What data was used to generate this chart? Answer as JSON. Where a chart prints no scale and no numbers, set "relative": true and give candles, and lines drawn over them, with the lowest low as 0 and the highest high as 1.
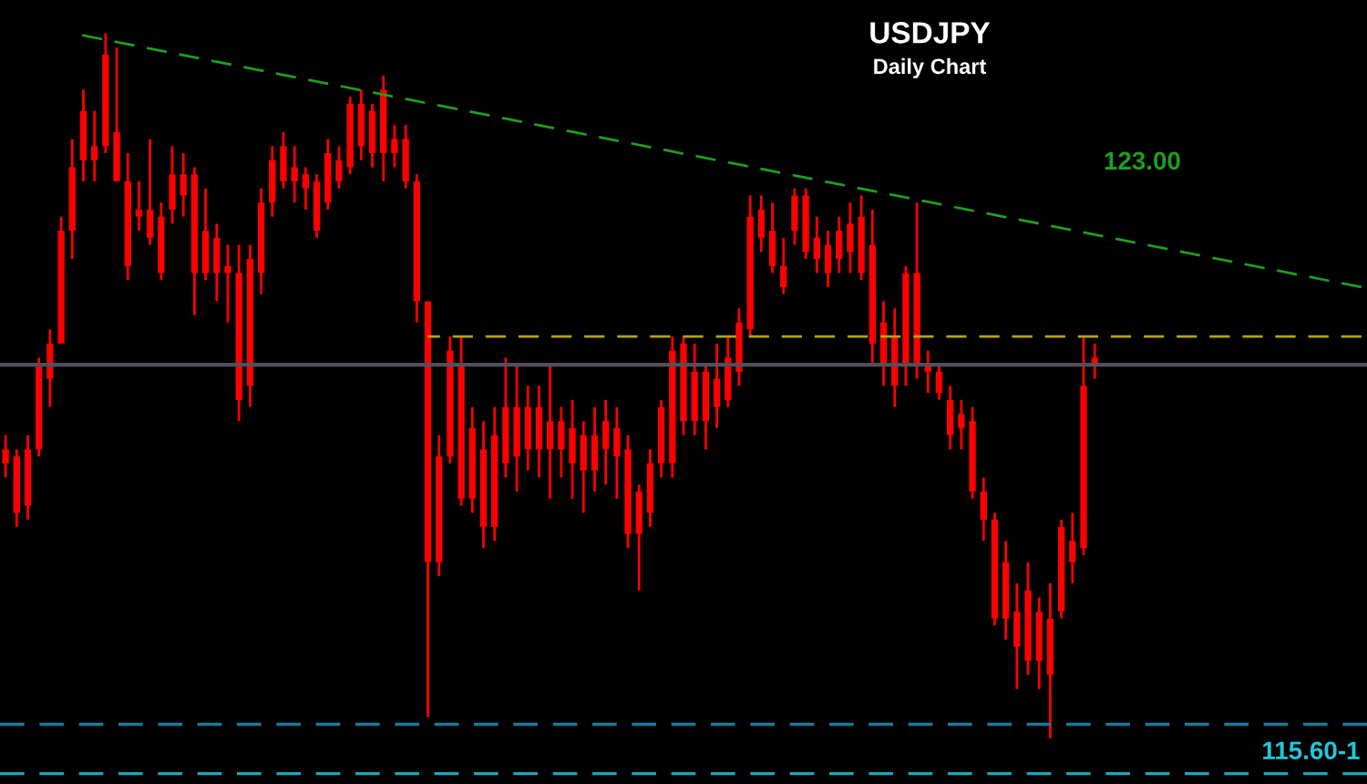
{
  "chart_data": {
    "type": "candlestick",
    "title": "USDJPY",
    "subtitle": "Daily Chart",
    "relative": true,
    "annotations": [
      "115.60-1"
    ],
    "categories": [
      null,
      null,
      null,
      null,
      null,
      null,
      null,
      null,
      null,
      null,
      null,
      null,
      null,
      null,
      null,
      null,
      null,
      null,
      null,
      null,
      null,
      null,
      null,
      null,
      null,
      null,
      null,
      null,
      null,
      null,
      null,
      null,
      null,
      null,
      null,
      null,
      null,
      null,
      null,
      null,
      null,
      null,
      null,
      null,
      null,
      null,
      null,
      null,
      null,
      null,
      null,
      null,
      null,
      null,
      null,
      null,
      null,
      null,
      null,
      null,
      null,
      null,
      null,
      null,
      null,
      null,
      null,
      null,
      null,
      null,
      null,
      null,
      null,
      null,
      null,
      null,
      null,
      null,
      null,
      null,
      null,
      null,
      null,
      null,
      null,
      null,
      null,
      null,
      null,
      null,
      null,
      null,
      null,
      null,
      null,
      null,
      null,
      null,
      null,
      null,
      null,
      null,
      null,
      null,
      null,
      null,
      null,
      null,
      null,
      null,
      null,
      null,
      null,
      null,
      null,
      null,
      null,
      null,
      null,
      null,
      null,
      null,
      null
    ],
    "series": [
      {
        "type": "candlestick",
        "color": "#ff0000",
        "ohlc": [
          [
            0.41,
            0.43,
            0.37,
            0.39
          ],
          [
            0.4,
            0.41,
            0.3,
            0.32
          ],
          [
            0.41,
            0.43,
            0.31,
            0.33
          ],
          [
            0.53,
            0.54,
            0.4,
            0.41
          ],
          [
            0.56,
            0.58,
            0.47,
            0.51
          ],
          [
            0.72,
            0.74,
            0.56,
            0.56
          ],
          [
            0.81,
            0.85,
            0.68,
            0.72
          ],
          [
            0.89,
            0.92,
            0.79,
            0.82
          ],
          [
            0.84,
            0.89,
            0.79,
            0.82
          ],
          [
            0.97,
            1.0,
            0.83,
            0.84
          ],
          [
            0.86,
            0.98,
            0.79,
            0.79
          ],
          [
            0.79,
            0.83,
            0.65,
            0.67
          ],
          [
            0.75,
            0.79,
            0.72,
            0.74
          ],
          [
            0.75,
            0.85,
            0.7,
            0.71
          ],
          [
            0.74,
            0.76,
            0.65,
            0.66
          ],
          [
            0.8,
            0.84,
            0.73,
            0.75
          ],
          [
            0.8,
            0.83,
            0.74,
            0.77
          ],
          [
            0.8,
            0.81,
            0.6,
            0.66
          ],
          [
            0.72,
            0.78,
            0.65,
            0.66
          ],
          [
            0.71,
            0.73,
            0.62,
            0.66
          ],
          [
            0.67,
            0.7,
            0.59,
            0.66
          ],
          [
            0.66,
            0.7,
            0.45,
            0.48
          ],
          [
            0.68,
            0.7,
            0.47,
            0.5
          ],
          [
            0.76,
            0.78,
            0.63,
            0.66
          ],
          [
            0.82,
            0.84,
            0.74,
            0.76
          ],
          [
            0.84,
            0.86,
            0.78,
            0.79
          ],
          [
            0.81,
            0.84,
            0.76,
            0.79
          ],
          [
            0.8,
            0.81,
            0.75,
            0.78
          ],
          [
            0.79,
            0.8,
            0.71,
            0.72
          ],
          [
            0.83,
            0.85,
            0.75,
            0.76
          ],
          [
            0.82,
            0.84,
            0.78,
            0.79
          ],
          [
            0.9,
            0.91,
            0.8,
            0.81
          ],
          [
            0.9,
            0.92,
            0.82,
            0.84
          ],
          [
            0.89,
            0.9,
            0.81,
            0.83
          ],
          [
            0.92,
            0.94,
            0.79,
            0.83
          ],
          [
            0.85,
            0.87,
            0.81,
            0.83
          ],
          [
            0.85,
            0.87,
            0.78,
            0.79
          ],
          [
            0.79,
            0.8,
            0.59,
            0.62
          ],
          [
            0.62,
            0.62,
            0.03,
            0.25
          ],
          [
            0.4,
            0.43,
            0.23,
            0.25
          ],
          [
            0.55,
            0.57,
            0.39,
            0.4
          ],
          [
            0.53,
            0.57,
            0.33,
            0.34
          ],
          [
            0.44,
            0.47,
            0.32,
            0.34
          ],
          [
            0.41,
            0.45,
            0.27,
            0.3
          ],
          [
            0.43,
            0.47,
            0.28,
            0.3
          ],
          [
            0.47,
            0.54,
            0.37,
            0.39
          ],
          [
            0.47,
            0.53,
            0.35,
            0.4
          ],
          [
            0.47,
            0.5,
            0.38,
            0.41
          ],
          [
            0.47,
            0.5,
            0.37,
            0.41
          ],
          [
            0.45,
            0.53,
            0.34,
            0.41
          ],
          [
            0.45,
            0.47,
            0.37,
            0.41
          ],
          [
            0.44,
            0.48,
            0.34,
            0.39
          ],
          [
            0.43,
            0.45,
            0.32,
            0.38
          ],
          [
            0.43,
            0.47,
            0.35,
            0.38
          ],
          [
            0.45,
            0.48,
            0.36,
            0.41
          ],
          [
            0.44,
            0.47,
            0.34,
            0.4
          ],
          [
            0.41,
            0.43,
            0.27,
            0.29
          ],
          [
            0.35,
            0.36,
            0.21,
            0.29
          ],
          [
            0.39,
            0.41,
            0.3,
            0.32
          ],
          [
            0.47,
            0.48,
            0.37,
            0.39
          ],
          [
            0.55,
            0.57,
            0.37,
            0.39
          ],
          [
            0.56,
            0.57,
            0.43,
            0.45
          ],
          [
            0.52,
            0.56,
            0.43,
            0.45
          ],
          [
            0.52,
            0.53,
            0.41,
            0.45
          ],
          [
            0.51,
            0.56,
            0.44,
            0.47
          ],
          [
            0.54,
            0.57,
            0.47,
            0.48
          ],
          [
            0.59,
            0.61,
            0.5,
            0.52
          ],
          [
            0.74,
            0.77,
            0.57,
            0.58
          ],
          [
            0.75,
            0.77,
            0.69,
            0.71
          ],
          [
            0.72,
            0.76,
            0.66,
            0.67
          ],
          [
            0.67,
            0.71,
            0.63,
            0.64
          ],
          [
            0.77,
            0.78,
            0.7,
            0.72
          ],
          [
            0.77,
            0.78,
            0.68,
            0.69
          ],
          [
            0.71,
            0.74,
            0.66,
            0.68
          ],
          [
            0.7,
            0.72,
            0.64,
            0.66
          ],
          [
            0.72,
            0.74,
            0.66,
            0.68
          ],
          [
            0.73,
            0.76,
            0.66,
            0.69
          ],
          [
            0.74,
            0.77,
            0.65,
            0.66
          ],
          [
            0.7,
            0.75,
            0.53,
            0.56
          ],
          [
            0.59,
            0.62,
            0.5,
            0.53
          ],
          [
            0.57,
            0.61,
            0.47,
            0.5
          ],
          [
            0.66,
            0.67,
            0.5,
            0.53
          ],
          [
            0.66,
            0.76,
            0.51,
            0.53
          ],
          [
            0.53,
            0.55,
            0.49,
            0.52
          ],
          [
            0.52,
            0.53,
            0.48,
            0.49
          ],
          [
            0.48,
            0.5,
            0.41,
            0.43
          ],
          [
            0.46,
            0.48,
            0.41,
            0.44
          ],
          [
            0.45,
            0.47,
            0.34,
            0.35
          ],
          [
            0.35,
            0.37,
            0.28,
            0.31
          ],
          [
            0.31,
            0.32,
            0.16,
            0.17
          ],
          [
            0.25,
            0.28,
            0.14,
            0.17
          ],
          [
            0.18,
            0.22,
            0.07,
            0.13
          ],
          [
            0.21,
            0.25,
            0.09,
            0.11
          ],
          [
            0.18,
            0.2,
            0.07,
            0.11
          ],
          [
            0.17,
            0.22,
            0.0,
            0.09
          ],
          [
            0.3,
            0.31,
            0.17,
            0.18
          ],
          [
            0.28,
            0.32,
            0.22,
            0.25
          ],
          [
            0.5,
            0.57,
            0.26,
            0.27
          ],
          [
            0.54,
            0.56,
            0.51,
            0.53
          ],
          null,
          null,
          null,
          null,
          null,
          null,
          null,
          null,
          null,
          null,
          null,
          null,
          null,
          null,
          null,
          null,
          null,
          null,
          null,
          null,
          null,
          null,
          null,
          null
        ]
      },
      {
        "type": "line",
        "name": "123.00",
        "color": "#1f9e1f",
        "line_style": "dashed",
        "values": [
          null,
          null,
          null,
          null,
          null,
          null,
          1.0,
          null,
          null,
          null,
          null,
          null,
          null,
          null,
          null,
          null,
          null,
          null,
          null,
          null,
          null,
          null,
          null,
          null,
          null,
          null,
          null,
          null,
          null,
          null,
          null,
          null,
          null,
          null,
          null,
          null,
          null,
          null,
          null,
          null,
          null,
          null,
          null,
          null,
          null,
          null,
          null,
          null,
          null,
          null,
          null,
          null,
          null,
          null,
          null,
          null,
          null,
          null,
          null,
          null,
          null,
          null,
          null,
          null,
          null,
          null,
          null,
          null,
          null,
          null,
          null,
          null,
          null,
          null,
          null,
          null,
          null,
          null,
          null,
          null,
          null,
          null,
          null,
          null,
          null,
          null,
          null,
          null,
          null,
          null,
          null,
          null,
          null,
          null,
          null,
          null,
          null,
          null,
          null,
          null,
          null,
          null,
          null,
          null,
          null,
          null,
          null,
          null,
          null,
          null,
          null,
          null,
          null,
          null,
          null,
          null,
          null,
          null,
          null,
          null,
          null,
          null,
          0.64
        ]
      },
      {
        "type": "line",
        "color": "#b3a600",
        "line_style": "dashed",
        "values": [
          null,
          null,
          null,
          null,
          null,
          null,
          null,
          null,
          null,
          null,
          null,
          null,
          null,
          null,
          null,
          null,
          null,
          null,
          null,
          null,
          null,
          null,
          null,
          null,
          null,
          null,
          null,
          null,
          null,
          null,
          null,
          null,
          null,
          null,
          null,
          null,
          null,
          null,
          0.57,
          null,
          null,
          null,
          null,
          null,
          null,
          null,
          null,
          null,
          null,
          null,
          null,
          null,
          null,
          null,
          null,
          null,
          null,
          null,
          null,
          null,
          null,
          null,
          null,
          null,
          null,
          null,
          null,
          null,
          null,
          null,
          null,
          null,
          null,
          null,
          null,
          null,
          null,
          null,
          null,
          null,
          null,
          null,
          null,
          null,
          null,
          null,
          null,
          null,
          null,
          null,
          null,
          null,
          null,
          null,
          null,
          null,
          null,
          null,
          null,
          null,
          null,
          null,
          null,
          null,
          null,
          null,
          null,
          null,
          null,
          null,
          null,
          null,
          null,
          null,
          null,
          null,
          null,
          null,
          null,
          null,
          null,
          null,
          0.57
        ]
      }
    ],
    "ref_lines": [
      {
        "axis": "y",
        "value": 0.53,
        "color": "#50505c",
        "line_style": "solid"
      },
      {
        "axis": "y",
        "value": 0.02,
        "color": "#1a7a9a",
        "line_style": "dashed"
      },
      {
        "axis": "y",
        "value": -0.05,
        "color": "#1fa5b5",
        "line_style": "dashed"
      }
    ]
  }
}
